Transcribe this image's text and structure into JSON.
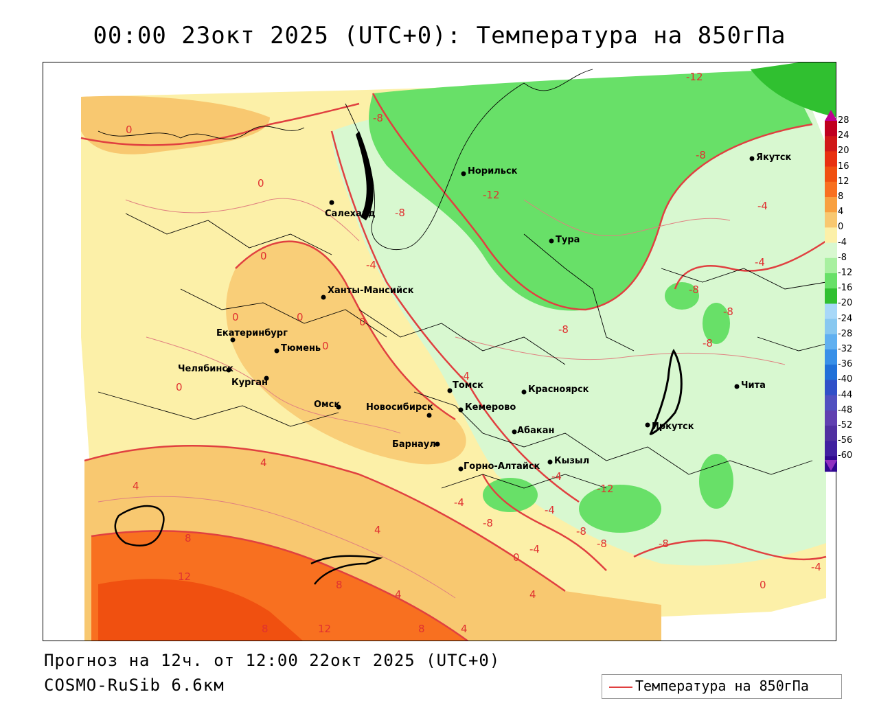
{
  "title": "00:00 23окт 2025 (UTC+0): Температура на 850гПа",
  "forecast": "Прогноз на 12ч. от 12:00 22окт 2025 (UTC+0)",
  "model": "COSMO-RuSib 6.6км",
  "legend_label": "Температура на 850гПа",
  "colorbar": {
    "ticks": [
      "28",
      "24",
      "20",
      "16",
      "12",
      "8",
      "4",
      "0",
      "-4",
      "-8",
      "-12",
      "-16",
      "-20",
      "-24",
      "-28",
      "-32",
      "-36",
      "-40",
      "-44",
      "-48",
      "-52",
      "-56",
      "-60"
    ],
    "colors": [
      "#c00020",
      "#d01818",
      "#e83010",
      "#f05010",
      "#f87020",
      "#f8a040",
      "#f8c870",
      "#fcf0a8",
      "#d8f8d0",
      "#a8f0a0",
      "#68e068",
      "#30c030",
      "#a8d8f8",
      "#88c8f0",
      "#60b0f0",
      "#3890e8",
      "#2070d8",
      "#3050c8",
      "#5050c0",
      "#6040b0",
      "#5030a0",
      "#4020a0",
      "#300890"
    ]
  },
  "cities": [
    "Салехард",
    "Норильск",
    "Тура",
    "Якутск",
    "Ханты-Мансийск",
    "Екатеринбург",
    "Тюмень",
    "Челябинск",
    "Курган",
    "Омск",
    "Новосибирск",
    "Томск",
    "Кемерово",
    "Красноярск",
    "Барнаул",
    "Абакан",
    "Горно-Алтайск",
    "Кызыл",
    "Иркутск",
    "Чита"
  ],
  "isotherm_labels": [
    "0",
    "0",
    "0",
    "0",
    "0",
    "0",
    "0",
    "0",
    "0",
    "0",
    "-4",
    "-4",
    "-4",
    "-4",
    "-4",
    "-4",
    "-4",
    "-4",
    "-4",
    "-8",
    "-8",
    "-8",
    "-8",
    "-8",
    "-8",
    "-8",
    "-8",
    "-8",
    "-8",
    "-8",
    "-12",
    "-12",
    "-12",
    "4",
    "4",
    "4",
    "4",
    "4",
    "4",
    "8",
    "8",
    "8",
    "8",
    "12",
    "12"
  ],
  "colors": {
    "isotherm": "#e04040",
    "warm": "#f8b060",
    "neutral": "#fcf0a8",
    "cool": "#d8f8d0",
    "cold": "#68e068"
  }
}
